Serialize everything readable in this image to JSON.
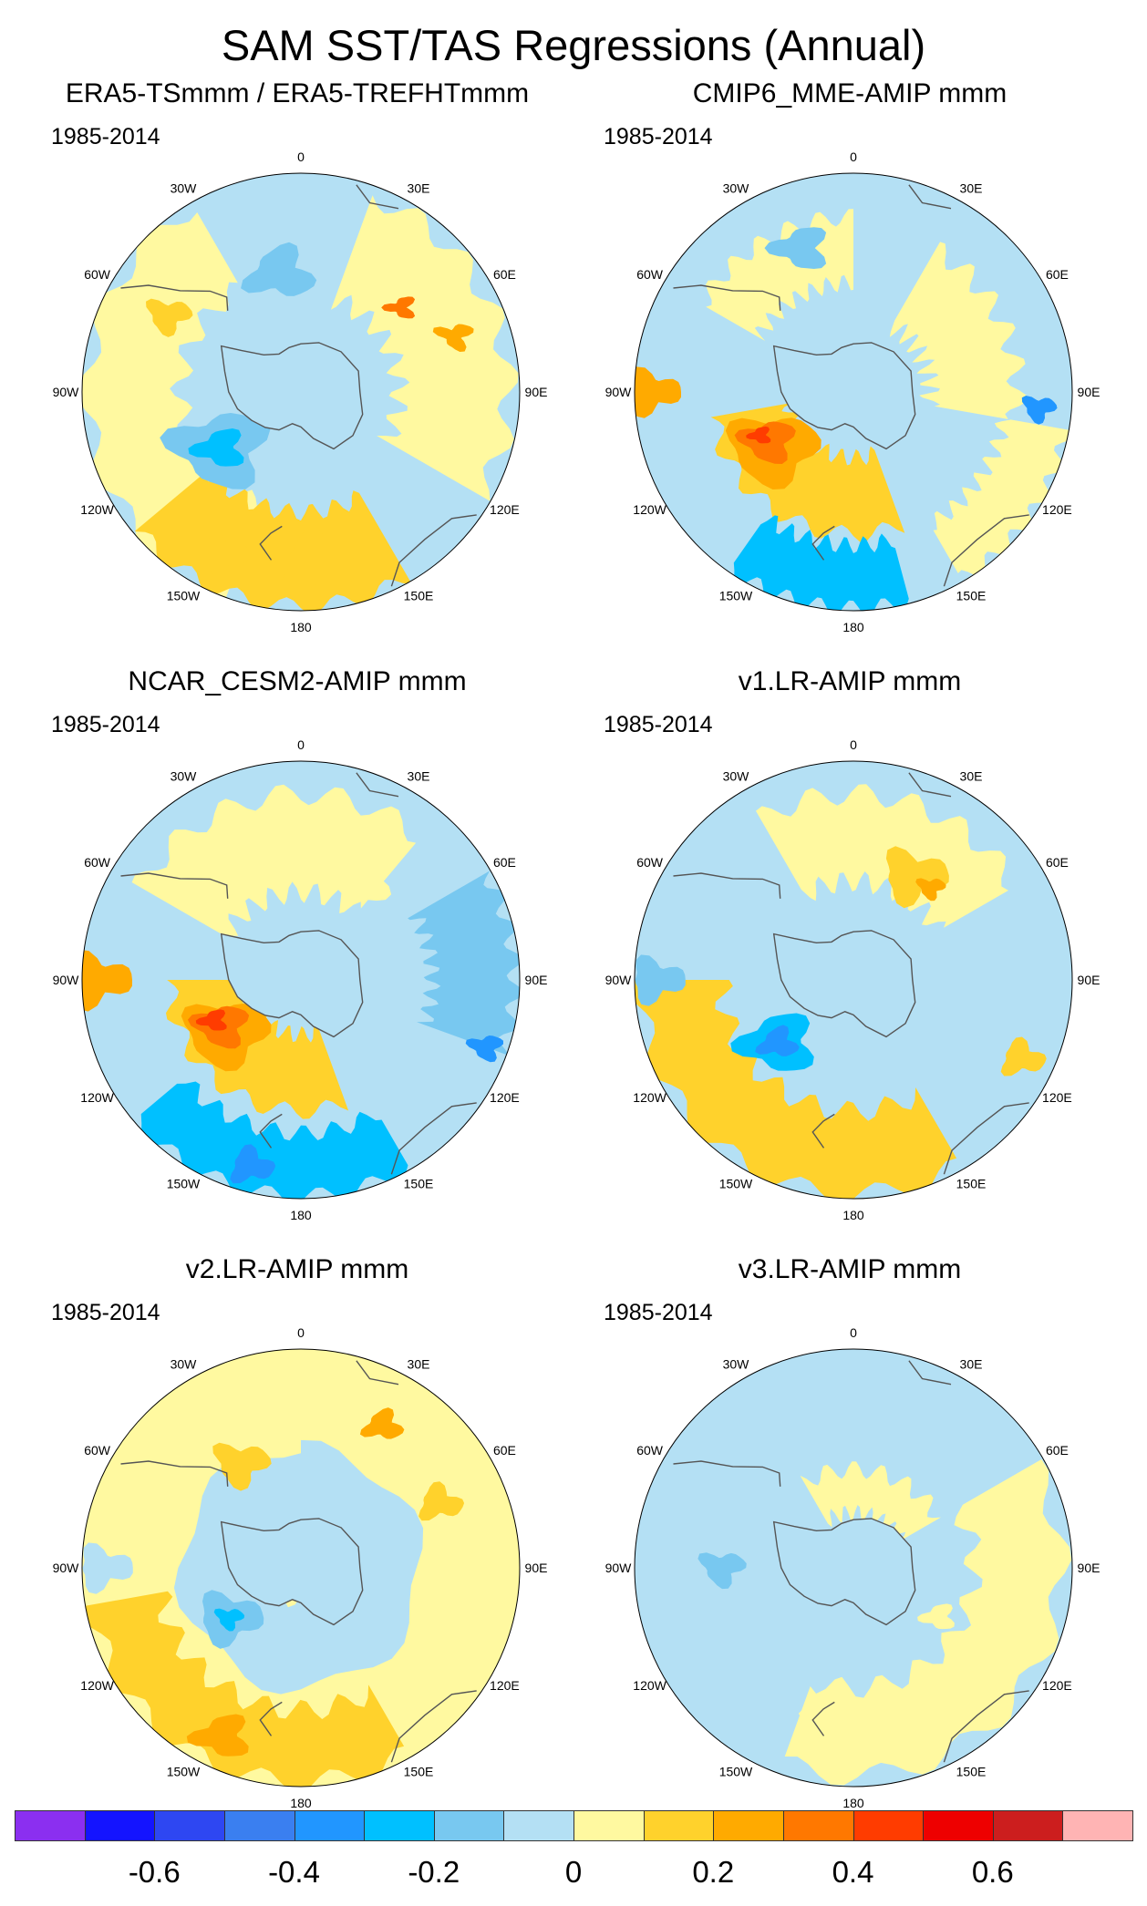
{
  "title": "SAM SST/TAS Regressions (Annual)",
  "panels": [
    {
      "title": "ERA5-TSmmm / ERA5-TREFHTmmm",
      "period": "1985-2014",
      "pattern": "era5"
    },
    {
      "title": "CMIP6_MME-AMIP  mmm",
      "period": "1985-2014",
      "pattern": "cmip6"
    },
    {
      "title": "NCAR_CESM2-AMIP  mmm",
      "period": "1985-2014",
      "pattern": "cesm2"
    },
    {
      "title": "v1.LR-AMIP  mmm",
      "period": "1985-2014",
      "pattern": "v1"
    },
    {
      "title": "v2.LR-AMIP  mmm",
      "period": "1985-2014",
      "pattern": "v2"
    },
    {
      "title": "v3.LR-AMIP  mmm",
      "period": "1985-2014",
      "pattern": "v3"
    }
  ],
  "longitude_labels": [
    "0",
    "30E",
    "60E",
    "90E",
    "120E",
    "150E",
    "180",
    "150W",
    "120W",
    "90W",
    "60W",
    "30W"
  ],
  "colorbar": {
    "colors": [
      "#8b2ff0",
      "#1414ff",
      "#2e47f2",
      "#3a7ff0",
      "#2196ff",
      "#00c0ff",
      "#78c8f0",
      "#b4e0f4",
      "#fff9a0",
      "#ffd22c",
      "#ffaa00",
      "#ff7800",
      "#ff3c00",
      "#ee0000",
      "#cc1e1e",
      "#ffb4b4"
    ],
    "labels": [
      "-0.6",
      "-0.4",
      "-0.2",
      "0",
      "0.2",
      "0.4",
      "0.6"
    ]
  }
}
